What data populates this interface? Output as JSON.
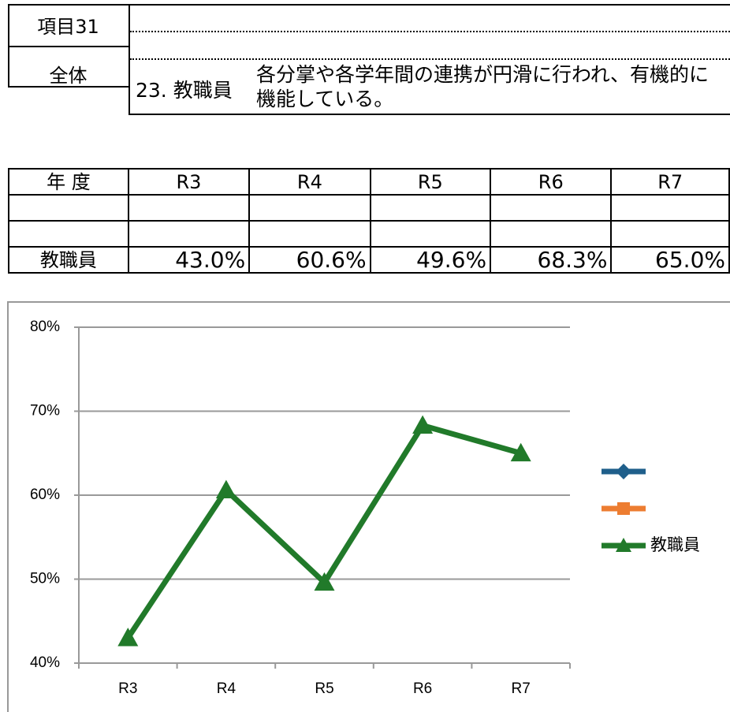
{
  "header": {
    "item": "項目31",
    "scope": "全体",
    "number": "23. 教職員",
    "description": "各分掌や各学年間の連携が円滑に行われ、有機的に機能している。"
  },
  "table": {
    "header": [
      "年 度",
      "R3",
      "R4",
      "R5",
      "R6",
      "R7"
    ],
    "rows": [
      [
        "教職員",
        "43.0%",
        "60.6%",
        "49.6%",
        "68.3%",
        "65.0%"
      ]
    ]
  },
  "chart_data": {
    "type": "line",
    "categories": [
      "R3",
      "R4",
      "R5",
      "R6",
      "R7"
    ],
    "ylim": [
      40,
      80
    ],
    "yticks": [
      {
        "value": 40,
        "label": "40%"
      },
      {
        "value": 50,
        "label": "50%"
      },
      {
        "value": 60,
        "label": "60%"
      },
      {
        "value": 70,
        "label": "70%"
      },
      {
        "value": 80,
        "label": "80%"
      }
    ],
    "grid": true,
    "legend": "right",
    "series": [
      {
        "color": "#1f5f8b",
        "marker": "diamond",
        "values": [
          null,
          null,
          null,
          null,
          null
        ]
      },
      {
        "color": "#ed7d31",
        "marker": "square",
        "values": [
          null,
          null,
          null,
          null,
          null
        ]
      },
      {
        "name": "教職員",
        "color": "#217a2a",
        "marker": "triangle",
        "values": [
          43.0,
          60.6,
          49.6,
          68.3,
          65.0
        ]
      }
    ]
  }
}
